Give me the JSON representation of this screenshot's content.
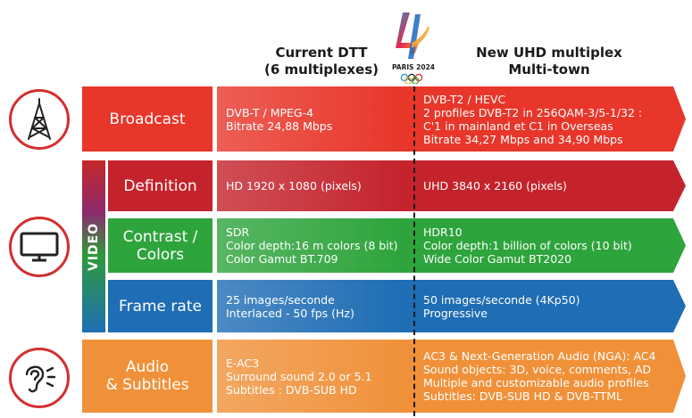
{
  "header": {
    "current_line1": "Current DTT",
    "current_line2": "(6 multiplexes)",
    "new_line1": "New UHD multiplex",
    "new_line2": "Multi-town",
    "logo_text": "PARIS 2024"
  },
  "side_label": "VIDEO",
  "icons": {
    "broadcast": "broadcast-tower-icon",
    "video": "television-monitor-icon",
    "audio": "ear-sound-icon"
  },
  "colors": {
    "broadcast": "#e8362a",
    "definition": "#c4232c",
    "contrast": "#2ea43c",
    "framerate": "#1f6db4",
    "audio": "#f0913a",
    "circle": "#d32f2f"
  },
  "rows": [
    {
      "key": "broadcast",
      "label": [
        "Broadcast"
      ],
      "current": [
        "DVB-T / MPEG-4",
        "Bitrate 24,88 Mbps"
      ],
      "new": [
        "DVB-T2 / HEVC",
        "2 profiles DVB-T2 in 256QAM-3/5-1/32 :",
        "C'1 in mainland et C1 in Overseas",
        "Bitrate 34,27 Mbps and 34,90 Mbps"
      ]
    },
    {
      "key": "definition",
      "label": [
        "Definition"
      ],
      "current": [
        "HD 1920 x 1080 (pixels)"
      ],
      "new": [
        "UHD 3840 x 2160 (pixels)"
      ]
    },
    {
      "key": "contrast",
      "label": [
        "Contrast /",
        "Colors"
      ],
      "current": [
        "SDR",
        "Color depth:16 m colors (8 bit)",
        "Color Gamut BT.709"
      ],
      "new": [
        "HDR10",
        "Color depth:1 billion of colors (10 bit)",
        "Wide Color Gamut BT2020"
      ]
    },
    {
      "key": "framerate",
      "label": [
        "Frame rate"
      ],
      "current": [
        "25 images/seconde",
        "Interlaced - 50 fps (Hz)"
      ],
      "new": [
        "50 images/seconde (4Kp50)",
        " Progressive"
      ]
    },
    {
      "key": "audio",
      "label": [
        "Audio",
        "& Subtitles"
      ],
      "current": [
        "E-AC3",
        "Surround sound 2.0 or 5.1",
        "Subtitles : DVB-SUB HD"
      ],
      "new": [
        "AC3 & Next-Generation Audio (NGA): AC4",
        "Sound objects: 3D, voice, comments, AD",
        "Multiple and customizable audio profiles",
        "Subtitles: DVB-SUB HD & DVB-TTML"
      ]
    }
  ]
}
